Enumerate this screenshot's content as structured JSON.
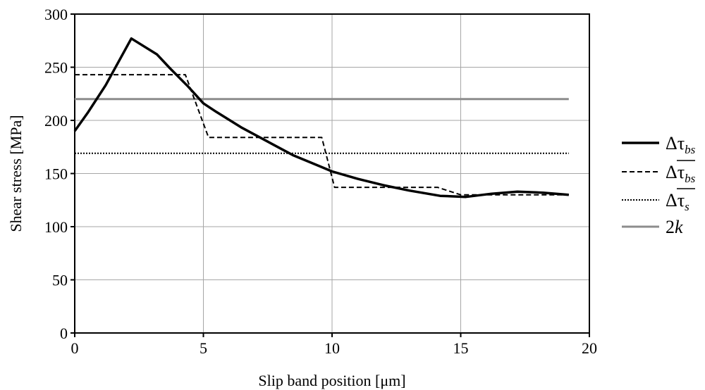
{
  "chart_data": {
    "type": "line",
    "title": "",
    "xlabel": "Slip band position [μm]",
    "ylabel": "Shear stress [MPa]",
    "xlim": [
      0,
      20
    ],
    "ylim": [
      0,
      300
    ],
    "x_ticks": [
      "0",
      "5",
      "10",
      "15",
      "20"
    ],
    "y_ticks": [
      "0",
      "50",
      "100",
      "150",
      "200",
      "250",
      "300"
    ],
    "grid": true,
    "legend_position": "right",
    "series": [
      {
        "key": "solid",
        "legend_main": "Δτ",
        "legend_sub": "bs",
        "legend_overline": false,
        "style": "solid",
        "color": "#000000",
        "x": [
          0,
          0.5,
          1.2,
          2.2,
          3.2,
          3.7,
          4.4,
          5.0,
          5.5,
          6.5,
          7.5,
          8.5,
          9.5,
          10.0,
          11.0,
          12.0,
          13.0,
          14.2,
          15.2,
          16.2,
          17.2,
          18.2,
          19.2
        ],
        "y": [
          190,
          207,
          233,
          277,
          262,
          249,
          232,
          216,
          208,
          193,
          180,
          167,
          157,
          152,
          145,
          139,
          134,
          129,
          128,
          131,
          133,
          132,
          130
        ]
      },
      {
        "key": "dashed",
        "legend_main": "Δτ",
        "legend_sub": "bs",
        "legend_overline": true,
        "style": "dashed",
        "color": "#000000",
        "x": [
          0,
          4.3,
          5.2,
          9.6,
          10.1,
          14.1,
          15.0,
          19.2
        ],
        "y": [
          243,
          243,
          184,
          184,
          137,
          137,
          130,
          130
        ]
      },
      {
        "key": "dotted",
        "legend_main": "Δτ",
        "legend_sub": "s",
        "legend_overline": true,
        "style": "dotted",
        "color": "#000000",
        "x": [
          0,
          19.2
        ],
        "y": [
          169,
          169
        ]
      },
      {
        "key": "gray",
        "legend_main": "2",
        "legend_sub": "k",
        "legend_overline": false,
        "style": "solid",
        "color": "#8c8c8c",
        "x": [
          0,
          19.2
        ],
        "y": [
          220,
          220
        ]
      }
    ]
  }
}
